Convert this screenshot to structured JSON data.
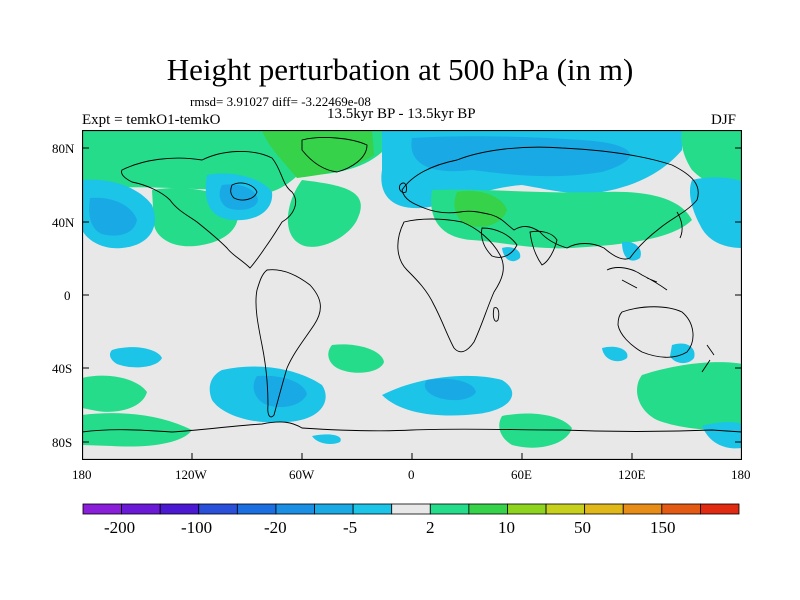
{
  "title": "Height perturbation at 500 hPa (in m)",
  "stats_line": "rmsd= 3.91027 diff= -3.22469e-08",
  "left_label": "Expt = temkO1-temkO",
  "center_label": "13.5kyr BP - 13.5kyr BP",
  "right_label": "DJF",
  "lat_ticks": [
    "80N",
    "40N",
    "0",
    "40S",
    "80S"
  ],
  "lon_ticks": [
    "180",
    "120W",
    "60W",
    "0",
    "60E",
    "120E",
    "180"
  ],
  "colorbar": {
    "labels": [
      "-200",
      "-100",
      "-20",
      "-5",
      "2",
      "10",
      "50",
      "150"
    ],
    "colors": [
      "#8a1fd9",
      "#6a19d6",
      "#4b19d2",
      "#2a4fd8",
      "#1b6fe0",
      "#1a8fe4",
      "#19aae6",
      "#1cc4e8",
      "#e8e8e8",
      "#25dc8a",
      "#35d24a",
      "#8ed41f",
      "#c7d01c",
      "#e0b81a",
      "#e88c18",
      "#e35a15",
      "#e02a12"
    ]
  },
  "map": {
    "background": "#e8e8e8",
    "colors": {
      "light_blue": "#1cc4e8",
      "mid_blue": "#19aae6",
      "dark_blue": "#1a8fe4",
      "light_green": "#25dc8a",
      "green": "#35d24a",
      "yellow_green": "#8ed41f"
    }
  }
}
